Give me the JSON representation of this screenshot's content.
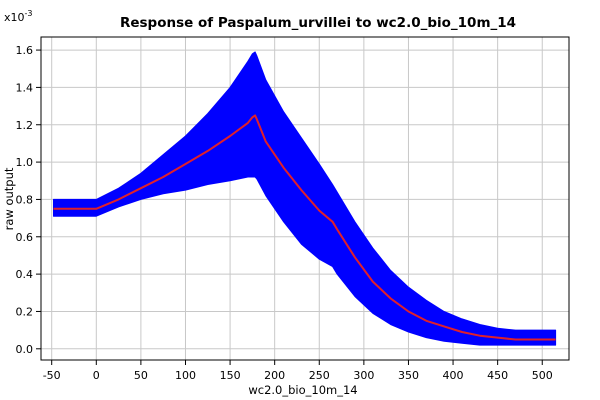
{
  "chart_data": {
    "type": "area",
    "title": "Response of Paspalum_urvillei to wc2.0_bio_10m_14",
    "xlabel": "wc2.0_bio_10m_14",
    "ylabel": "raw output",
    "y_multiplier": "x10",
    "y_multiplier_exp": "-3",
    "xlim": [
      -62,
      530
    ],
    "ylim": [
      -0.06,
      1.67
    ],
    "x_ticks": [
      -50,
      0,
      50,
      100,
      150,
      200,
      250,
      300,
      350,
      400,
      450,
      500
    ],
    "x_tick_labels": [
      "-50",
      "0",
      "50",
      "100",
      "150",
      "200",
      "250",
      "300",
      "350",
      "400",
      "450",
      "500"
    ],
    "y_ticks": [
      0.0,
      0.2,
      0.4,
      0.6,
      0.8,
      1.0,
      1.2,
      1.4,
      1.6
    ],
    "y_tick_labels": [
      "0.0",
      "0.2",
      "0.4",
      "0.6",
      "0.8",
      "1.0",
      "1.2",
      "1.4",
      "1.6"
    ],
    "grid": true,
    "band_color": "#0000ff",
    "line_color": "#e0202a",
    "series": [
      {
        "x": [
          -48,
          -30,
          0,
          25,
          50,
          75,
          100,
          125,
          150,
          170,
          175,
          178,
          180,
          190,
          210,
          230,
          250,
          265,
          270,
          290,
          310,
          330,
          350,
          370,
          390,
          410,
          430,
          450,
          470,
          490,
          515
        ],
        "upper": [
          0.8,
          0.8,
          0.8,
          0.86,
          0.94,
          1.04,
          1.14,
          1.26,
          1.4,
          1.54,
          1.58,
          1.59,
          1.57,
          1.44,
          1.27,
          1.13,
          0.99,
          0.88,
          0.84,
          0.68,
          0.54,
          0.42,
          0.33,
          0.26,
          0.2,
          0.16,
          0.13,
          0.11,
          0.1,
          0.1,
          0.1
        ],
        "mean": [
          0.75,
          0.75,
          0.75,
          0.8,
          0.86,
          0.92,
          0.99,
          1.06,
          1.14,
          1.21,
          1.24,
          1.25,
          1.23,
          1.11,
          0.97,
          0.85,
          0.74,
          0.68,
          0.64,
          0.49,
          0.36,
          0.27,
          0.2,
          0.15,
          0.12,
          0.09,
          0.07,
          0.06,
          0.05,
          0.05,
          0.05
        ],
        "lower": [
          0.71,
          0.71,
          0.71,
          0.76,
          0.8,
          0.83,
          0.85,
          0.88,
          0.9,
          0.92,
          0.92,
          0.92,
          0.91,
          0.82,
          0.68,
          0.56,
          0.48,
          0.44,
          0.4,
          0.28,
          0.19,
          0.13,
          0.09,
          0.06,
          0.04,
          0.03,
          0.02,
          0.02,
          0.02,
          0.02,
          0.02
        ]
      }
    ]
  }
}
